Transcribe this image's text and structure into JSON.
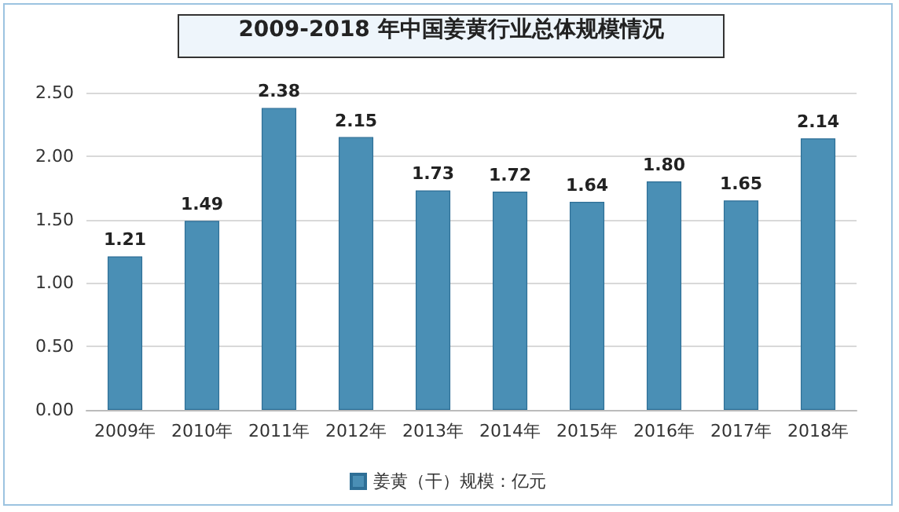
{
  "chart_data": {
    "type": "bar",
    "title": "2009-2018 年中国姜黄行业总体规模情况",
    "categories": [
      "2009年",
      "2010年",
      "2011年",
      "2012年",
      "2013年",
      "2014年",
      "2015年",
      "2016年",
      "2017年",
      "2018年"
    ],
    "series": [
      {
        "name": "姜黄（干）规模：亿元",
        "color": "#4a8fb5",
        "values": [
          1.21,
          1.49,
          2.38,
          2.15,
          1.73,
          1.72,
          1.64,
          1.8,
          1.65,
          2.14
        ],
        "value_labels": [
          "1.21",
          "1.49",
          "2.38",
          "2.15",
          "1.73",
          "1.72",
          "1.64",
          "1.80",
          "1.65",
          "2.14"
        ]
      }
    ],
    "ylim": [
      0,
      2.5
    ],
    "yticks": [
      {
        "value": 0,
        "label": "0.00"
      },
      {
        "value": 0.5,
        "label": "0.50"
      },
      {
        "value": 1,
        "label": "1.00"
      },
      {
        "value": 1.5,
        "label": "1.50"
      },
      {
        "value": 2,
        "label": "2.00"
      },
      {
        "value": 2.5,
        "label": "2.50"
      }
    ],
    "grid": "y",
    "legend": "bottom"
  }
}
